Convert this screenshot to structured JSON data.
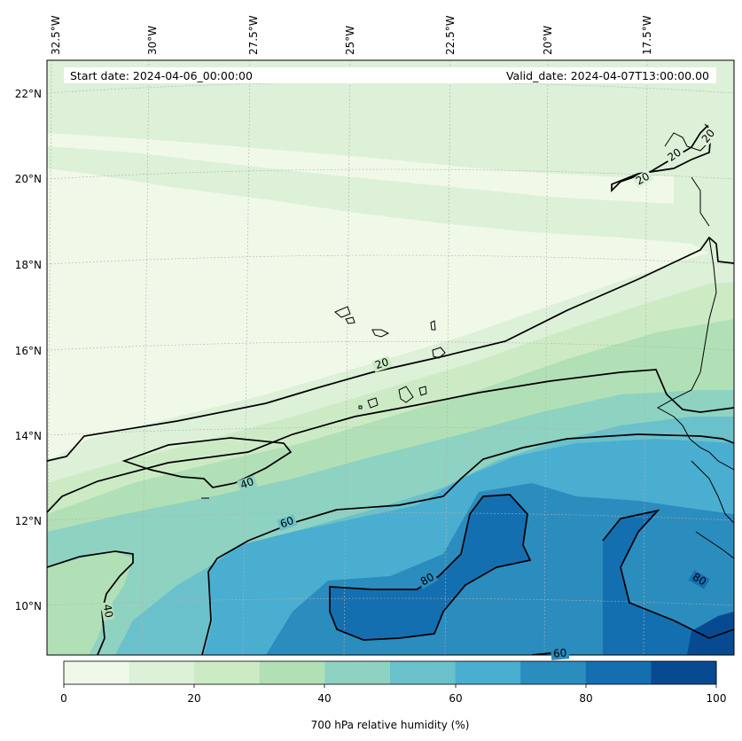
{
  "header": {
    "start_date": "Start date: 2024-04-06_00:00:00",
    "valid_date": "Valid_date: 2024-04-07T13:00:00.00"
  },
  "map": {
    "longitude_labels": [
      "32.5°W",
      "30°W",
      "27.5°W",
      "25°W",
      "22.5°W",
      "20°W",
      "17.5°W"
    ],
    "latitude_labels": [
      "22°N",
      "20°N",
      "18°N",
      "16°N",
      "14°N",
      "12°N",
      "10°N"
    ],
    "contour_labels": [
      "20",
      "20",
      "20",
      "20",
      "40",
      "40",
      "60",
      "60",
      "80",
      "80"
    ]
  },
  "colorbar": {
    "label": "700 hPa relative humidity (%)",
    "tick_labels": [
      "0",
      "20",
      "40",
      "60",
      "80",
      "100"
    ],
    "colors": [
      "#f0f9e8",
      "#ddf0d8",
      "#ccebc5",
      "#b2e0b6",
      "#8ed2c2",
      "#6ac1cb",
      "#4aaed1",
      "#2b8cbe",
      "#146fb0",
      "#084a92"
    ]
  }
}
